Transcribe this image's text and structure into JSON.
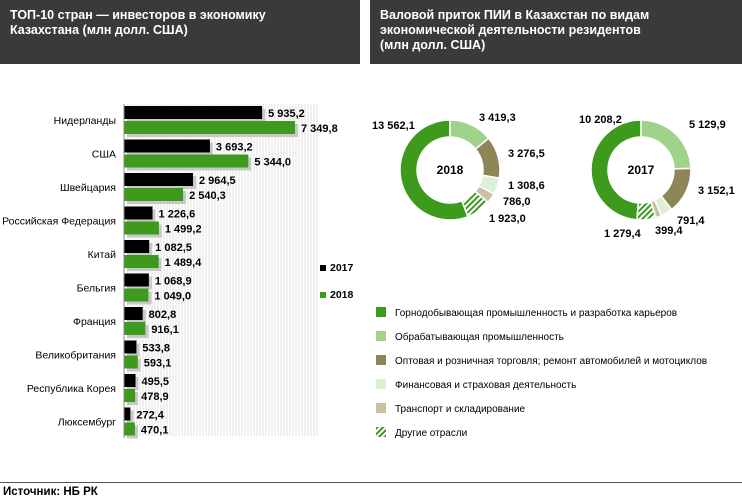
{
  "source_text": "Источник:  НБ РК",
  "colors": {
    "y2017": "#000000",
    "y2018": "#3d9a1c",
    "mining": "#3d9a1c",
    "manufacturing": "#9fd28a",
    "trade": "#8d8656",
    "finance": "#dcf0d6",
    "transport": "#c8c2a3",
    "other_hatch": "#3d9a1c"
  },
  "chart_data": [
    {
      "type": "bar",
      "title_lines": [
        "ТОП-10 стран — инвесторов  в экономику",
        "Казахстана (млн долл. США)"
      ],
      "categories": [
        "Нидерланды",
        "США",
        "Швейцария",
        "Российская Федерация",
        "Китай",
        "Бельгия",
        "Франция",
        "Великобритания",
        "Республика Корея",
        "Люксембург"
      ],
      "series": [
        {
          "name": "2017",
          "values": [
            5935.2,
            3693.2,
            2964.5,
            1226.6,
            1082.5,
            1068.9,
            802.8,
            533.8,
            495.5,
            272.4
          ],
          "labels": [
            "5 935,2",
            "3 693,2",
            "2 964,5",
            "1 226,6",
            "1 082,5",
            "1 068,9",
            "802,8",
            "533,8",
            "495,5",
            "272,4"
          ]
        },
        {
          "name": "2018",
          "values": [
            7349.8,
            5344.0,
            2540.3,
            1499.2,
            1489.4,
            1049.0,
            916.1,
            593.1,
            478.9,
            470.1
          ],
          "labels": [
            "7 349,8",
            "5 344,0",
            "2 540,3",
            "1 499,2",
            "1 489,4",
            "1 049,0",
            "916,1",
            "593,1",
            "478,9",
            "470,1"
          ]
        }
      ],
      "legend": [
        "2017",
        "2018"
      ],
      "legend_position": "right"
    },
    {
      "type": "pie",
      "title_lines": [
        "Валовой приток ПИИ в Казахстан по видам",
        "экономической деятельности резидентов",
        "(млн долл. США)"
      ],
      "donuts": [
        {
          "center_label": "2018",
          "values": [
            13562.1,
            3419.3,
            3276.5,
            1308.6,
            786.0,
            1923.0
          ],
          "labels": [
            "13 562,1",
            "3 419,3",
            "3 276,5",
            "1 308,6",
            "786,0",
            "1 923,0"
          ]
        },
        {
          "center_label": "2017",
          "values": [
            10208.2,
            5129.9,
            3152.1,
            791.4,
            399.4,
            1279.4
          ],
          "labels": [
            "10 208,2",
            "5 129,9",
            "3 152,1",
            "791,4",
            "399,4",
            "1 279,4"
          ]
        }
      ],
      "legend": [
        "Горнодобывающая промышленность и разработка карьеров",
        "Обрабатывающая промышленность",
        "Оптовая и розничная торговля; ремонт автомобилей и мотоциклов",
        "Финансовая и страховая деятельность",
        "Транспорт и складирование",
        "Другие отрасли"
      ],
      "legend_position": "bottom"
    }
  ]
}
